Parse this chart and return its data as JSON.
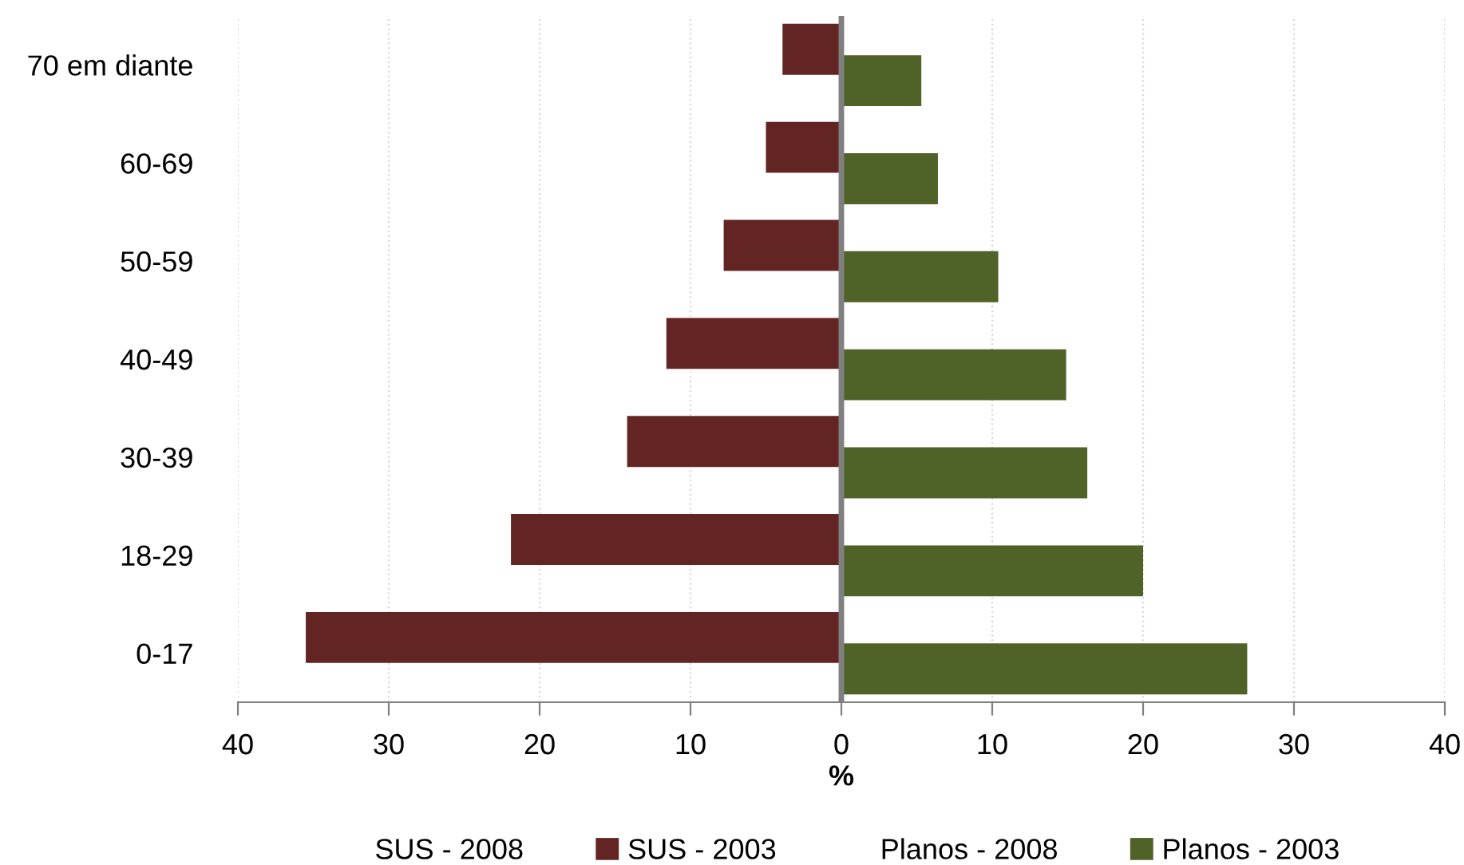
{
  "chart_data": {
    "type": "bar",
    "orientation": "horizontal",
    "xlabel": "%",
    "categories": [
      "70 em diante",
      "60-69",
      "50-59",
      "40-49",
      "30-39",
      "18-29",
      "0-17"
    ],
    "series": [
      {
        "name": "SUS - 2008",
        "values": [
          null,
          null,
          null,
          null,
          null,
          null,
          null
        ]
      },
      {
        "name": "SUS - 2003",
        "color": "#632523",
        "values": [
          -3.9,
          -5.0,
          -7.8,
          -11.6,
          -14.2,
          -21.9,
          -35.5
        ]
      },
      {
        "name": "Planos - 2008",
        "values": [
          null,
          null,
          null,
          null,
          null,
          null,
          null
        ]
      },
      {
        "name": "Planos - 2003",
        "color": "#4f6228",
        "values": [
          5.3,
          6.4,
          10.4,
          14.9,
          16.3,
          20.0,
          26.9
        ]
      }
    ],
    "xlim": [
      -40,
      40
    ],
    "xticks": [
      {
        "value": -40,
        "label": "40"
      },
      {
        "value": -30,
        "label": "30"
      },
      {
        "value": -20,
        "label": "20"
      },
      {
        "value": -10,
        "label": "10"
      },
      0,
      10,
      20,
      30,
      40
    ],
    "ref_lines": [
      {
        "axis": "x",
        "value": 0,
        "color": "#808080"
      }
    ],
    "grid": "x",
    "legend": "bottom"
  }
}
